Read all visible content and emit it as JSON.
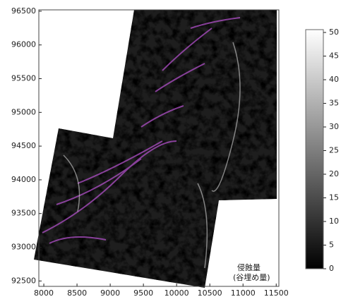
{
  "chart_data": {
    "type": "image",
    "xlim": [
      7925,
      11540
    ],
    "ylim": [
      92420,
      96520
    ],
    "xticks": [
      8000,
      8500,
      9000,
      9500,
      10000,
      10500,
      11000,
      11500
    ],
    "yticks": [
      92500,
      93000,
      93500,
      94000,
      94500,
      95000,
      95500,
      96000,
      96500
    ],
    "colorbar": {
      "lim": [
        0,
        50.6
      ],
      "ticks": [
        0,
        5,
        10,
        15,
        20,
        25,
        30,
        35,
        40,
        45,
        50
      ],
      "colors": [
        "#000000",
        "#ffffff"
      ]
    },
    "annotation": [
      "侵蝕量",
      "(谷埋め量)"
    ]
  }
}
